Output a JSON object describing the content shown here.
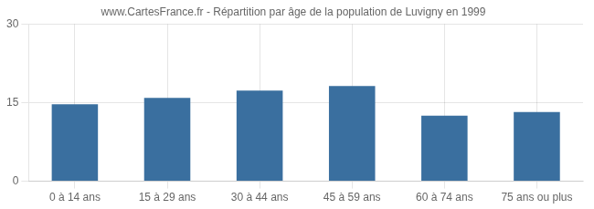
{
  "chart_data": {
    "type": "bar",
    "title": "www.CartesFrance.fr - Répartition par âge de la population de Luvigny en 1999",
    "categories": [
      "0 à 14 ans",
      "15 à 29 ans",
      "30 à 44 ans",
      "45 à 59 ans",
      "60 à 74 ans",
      "75 ans ou plus"
    ],
    "values": [
      14.7,
      15.9,
      17.3,
      18.2,
      12.5,
      13.2
    ],
    "color": "#3a6f9f",
    "ylim": [
      0,
      30
    ],
    "yticks": [
      0,
      15,
      30
    ],
    "grid": true
  }
}
